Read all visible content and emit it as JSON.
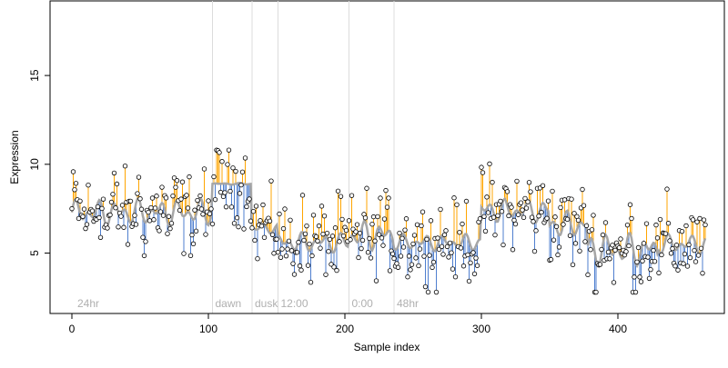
{
  "chart_data": {
    "type": "scatter",
    "xlabel": "Sample index",
    "ylabel": "Expression",
    "xlim": [
      -16,
      478
    ],
    "ylim": [
      1.6,
      19.2
    ],
    "x_ticks": [
      0,
      100,
      200,
      300,
      400
    ],
    "y_ticks": [
      5,
      10,
      15
    ],
    "grid": "vertical reference lines only",
    "colors": {
      "above_fit": "#ffa500",
      "below_fit": "#4f7fcf",
      "fit_line": "#a6a6a6",
      "reference_line": "#dcdcdc",
      "annotation_text": "#b0b0b0",
      "points": "#000000"
    },
    "vlines": [
      {
        "x": 103,
        "label": "dawn"
      },
      {
        "x": 132,
        "label": "dusk"
      },
      {
        "x": 151,
        "label": "12:00"
      },
      {
        "x": 203,
        "label": "0:00"
      },
      {
        "x": 236,
        "label": "48hr"
      }
    ],
    "annotations": [
      {
        "x": 2,
        "label": "24hr"
      }
    ],
    "segments": [
      {
        "from": 0,
        "to": 103,
        "baseline": 7.3,
        "amp": 0.8
      },
      {
        "from": 103,
        "to": 132,
        "baseline": 8.9,
        "amp": 0.05
      },
      {
        "from": 132,
        "to": 151,
        "baseline": 6.4,
        "amp": 0.3
      },
      {
        "from": 151,
        "to": 203,
        "baseline": 5.6,
        "amp": 0.6
      },
      {
        "from": 203,
        "to": 236,
        "baseline": 6.0,
        "amp": 0.9
      },
      {
        "from": 236,
        "to": 300,
        "baseline": 5.6,
        "amp": 0.5
      },
      {
        "from": 300,
        "to": 350,
        "baseline": 7.4,
        "amp": 0.7
      },
      {
        "from": 350,
        "to": 378,
        "baseline": 6.6,
        "amp": 0.8
      },
      {
        "from": 378,
        "to": 430,
        "baseline": 5.2,
        "amp": 1.0
      },
      {
        "from": 430,
        "to": 465,
        "baseline": 5.5,
        "amp": 0.6
      }
    ],
    "n_points": 465,
    "point_summary": "465 circles each joined to the fitted curve by a vertical segment: orange when above the fit, blue when below; values approx. 2.8 to 10.8"
  }
}
